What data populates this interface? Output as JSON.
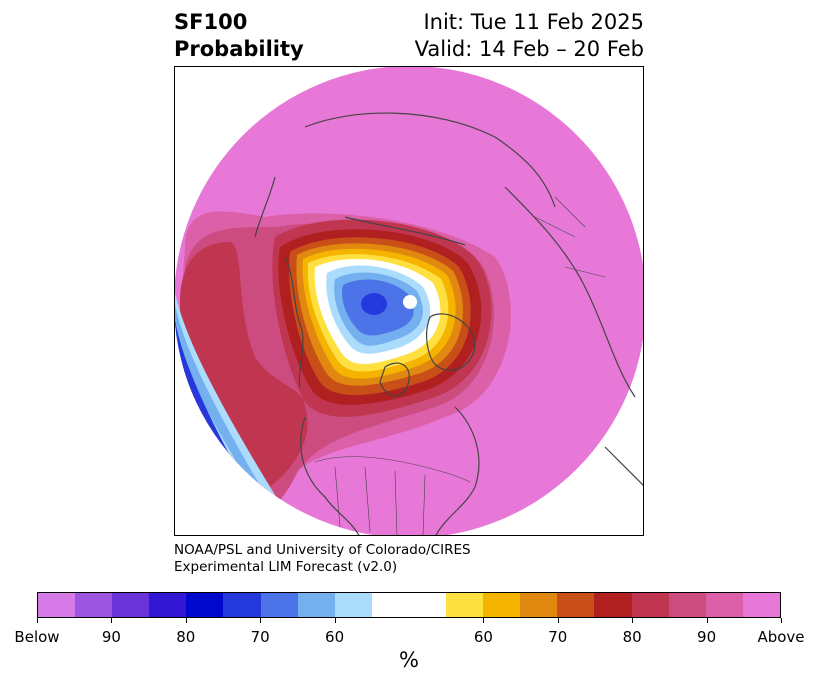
{
  "header": {
    "title_line1": "SF100",
    "title_line2": "Probability",
    "init_text": "Init: Tue 11 Feb 2025",
    "valid_text": "Valid: 14 Feb – 20 Feb"
  },
  "credit": {
    "line1": "NOAA/PSL and University of Colorado/CIRES",
    "line2": "Experimental LIM Forecast (v2.0)"
  },
  "colorbar": {
    "unit": "%",
    "segments": [
      "#d67ae8",
      "#9c55e0",
      "#6a35d8",
      "#3218d4",
      "#0008cc",
      "#2438dc",
      "#4c74e8",
      "#74b0f0",
      "#acdcfc",
      "#ffffff",
      "#ffffff",
      "#fee040",
      "#f4b400",
      "#e08810",
      "#c85018",
      "#b02020",
      "#c03650",
      "#cc4c80",
      "#dc60a8",
      "#e878d8"
    ],
    "ticks": [
      {
        "label": "Below",
        "frac": 0.0
      },
      {
        "label": "90",
        "frac": 0.1
      },
      {
        "label": "80",
        "frac": 0.2
      },
      {
        "label": "70",
        "frac": 0.3
      },
      {
        "label": "60",
        "frac": 0.4
      },
      {
        "label": "60",
        "frac": 0.6
      },
      {
        "label": "70",
        "frac": 0.7
      },
      {
        "label": "80",
        "frac": 0.8
      },
      {
        "label": "90",
        "frac": 0.9
      },
      {
        "label": "Above",
        "frac": 1.0
      }
    ]
  },
  "map": {
    "fill_colors": {
      "above_max": "#e878d8",
      "above_90": "#dc60a8",
      "above_85": "#cc4c80",
      "above_80": "#c03650",
      "above_75": "#b02020",
      "above_70": "#c85018",
      "above_65": "#e08810",
      "above_60": "#f4b400",
      "above_55": "#fee040",
      "neutral": "#ffffff",
      "below_55": "#acdcfc",
      "below_60": "#74b0f0",
      "below_65": "#4c74e8",
      "below_70": "#2438dc",
      "below_80": "#0008cc",
      "coast": "#444444"
    }
  }
}
